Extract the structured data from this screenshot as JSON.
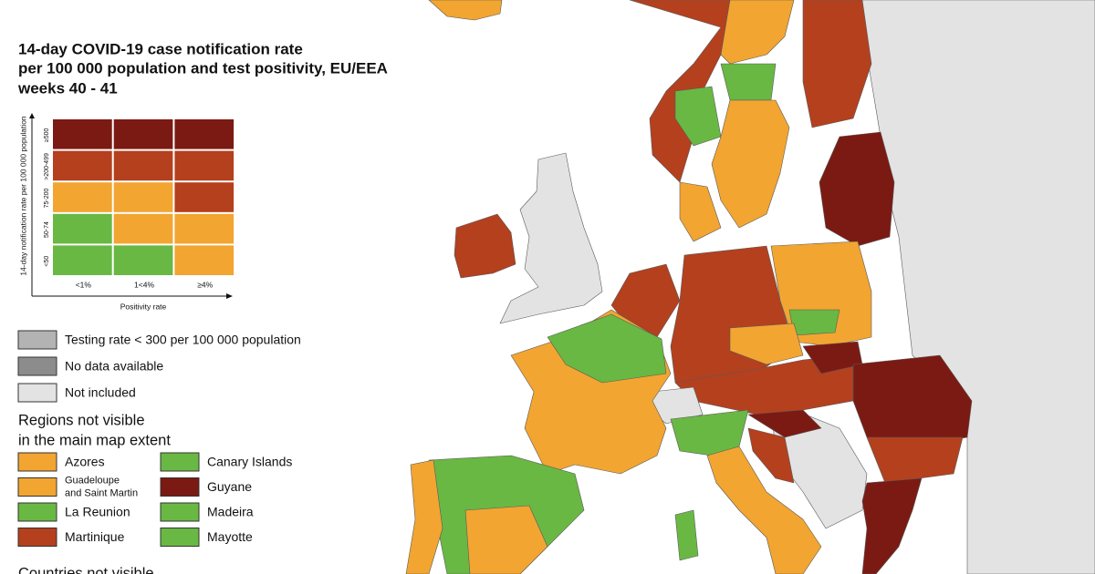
{
  "title": [
    "14-day COVID-19 case notification rate",
    "per 100 000 population and test positivity, EU/EEA",
    "weeks 40 - 41"
  ],
  "matrix": {
    "y_label": "14-day notification rate per 100 000 population",
    "x_label": "Positivity rate",
    "columns": [
      "<1%",
      "1<4%",
      "≥4%"
    ],
    "rows": [
      {
        "label": "≥500",
        "colors": [
          "#7b1a13",
          "#7b1a13",
          "#7b1a13"
        ]
      },
      {
        "label": ">200-499",
        "colors": [
          "#b4401e",
          "#b4401e",
          "#b4401e"
        ]
      },
      {
        "label": "75-200",
        "colors": [
          "#f2a531",
          "#f2a531",
          "#b4401e"
        ]
      },
      {
        "label": "50-74",
        "colors": [
          "#69b843",
          "#f2a531",
          "#f2a531"
        ]
      },
      {
        "label": "<50",
        "colors": [
          "#69b843",
          "#69b843",
          "#f2a531"
        ]
      }
    ]
  },
  "status_legend": [
    {
      "label": "Testing rate < 300 per 100 000 population",
      "color": "#b3b3b3"
    },
    {
      "label": "No data available",
      "color": "#8c8c8c"
    },
    {
      "label": "Not included",
      "color": "#e3e3e3"
    }
  ],
  "regions_heading": [
    "Regions not visible",
    "in the main map extent"
  ],
  "regions": [
    {
      "label": "Azores",
      "color": "#f2a531"
    },
    {
      "label": "Guadeloupe and Saint Martin",
      "color": "#f2a531"
    },
    {
      "label": "La Reunion",
      "color": "#69b843"
    },
    {
      "label": "Martinique",
      "color": "#b4401e"
    },
    {
      "label": "Canary Islands",
      "color": "#69b843"
    },
    {
      "label": "Guyane",
      "color": "#7b1a13"
    },
    {
      "label": "Madeira",
      "color": "#69b843"
    },
    {
      "label": "Mayotte",
      "color": "#69b843"
    }
  ],
  "countries_heading": "Countries not visible"
}
